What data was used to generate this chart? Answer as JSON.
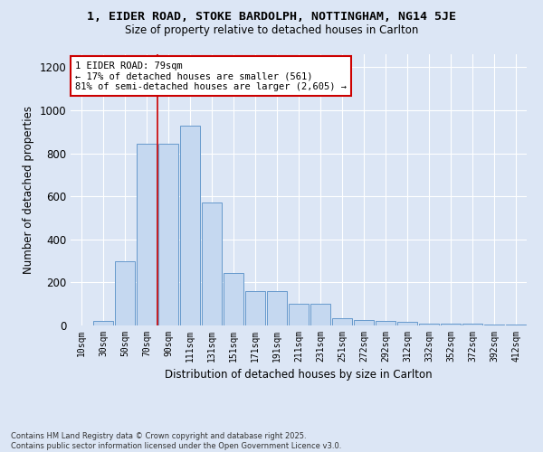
{
  "title": "1, EIDER ROAD, STOKE BARDOLPH, NOTTINGHAM, NG14 5JE",
  "subtitle": "Size of property relative to detached houses in Carlton",
  "xlabel": "Distribution of detached houses by size in Carlton",
  "ylabel": "Number of detached properties",
  "bar_color": "#c5d8f0",
  "bar_edge_color": "#6699cc",
  "background_color": "#dce6f5",
  "grid_color": "#ffffff",
  "categories": [
    "10sqm",
    "30sqm",
    "50sqm",
    "70sqm",
    "90sqm",
    "111sqm",
    "131sqm",
    "151sqm",
    "171sqm",
    "191sqm",
    "211sqm",
    "231sqm",
    "251sqm",
    "272sqm",
    "292sqm",
    "312sqm",
    "332sqm",
    "352sqm",
    "372sqm",
    "392sqm",
    "412sqm"
  ],
  "values": [
    0,
    20,
    300,
    845,
    845,
    930,
    570,
    245,
    160,
    160,
    100,
    100,
    35,
    25,
    22,
    15,
    10,
    10,
    8,
    5,
    5
  ],
  "ylim": [
    0,
    1260
  ],
  "yticks": [
    0,
    200,
    400,
    600,
    800,
    1000,
    1200
  ],
  "vline_x_index": 3.5,
  "annotation_text": "1 EIDER ROAD: 79sqm\n← 17% of detached houses are smaller (561)\n81% of semi-detached houses are larger (2,605) →",
  "annotation_box_color": "#ffffff",
  "annotation_border_color": "#cc0000",
  "footnote": "Contains HM Land Registry data © Crown copyright and database right 2025.\nContains public sector information licensed under the Open Government Licence v3.0."
}
